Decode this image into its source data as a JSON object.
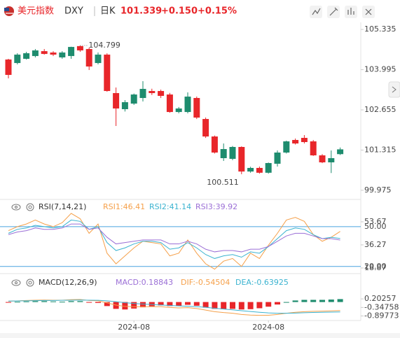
{
  "header": {
    "name": "美元指数",
    "symbol": "DXY",
    "period": "日K",
    "price": "101.339",
    "change": "+0.150",
    "pct": "+0.15%"
  },
  "chart_data": {
    "type": "candlestick",
    "ylim": [
      99.74,
      105.57
    ],
    "yticks": [
      105.335,
      103.995,
      102.655,
      101.315,
      99.975
    ],
    "colors": {
      "up": "#1e8c6e",
      "down": "#e8262a"
    },
    "high_label": 104.799,
    "low_label": 100.511,
    "xticks": [
      {
        "value": 14,
        "label": "2024-08"
      },
      {
        "value": 29,
        "label": "2024-08"
      }
    ],
    "candles": [
      [
        104.333,
        104.356,
        103.703,
        103.82
      ],
      [
        104.216,
        104.542,
        104.17,
        104.496
      ],
      [
        104.356,
        104.589,
        104.333,
        104.542
      ],
      [
        104.449,
        104.682,
        104.403,
        104.636
      ],
      [
        104.612,
        104.682,
        104.496,
        104.519
      ],
      [
        104.566,
        104.612,
        104.449,
        104.496
      ],
      [
        104.403,
        104.612,
        104.356,
        104.566
      ],
      [
        104.449,
        104.76,
        104.356,
        104.752
      ],
      [
        104.78,
        104.799,
        104.589,
        104.636
      ],
      [
        104.682,
        104.73,
        103.983,
        104.1
      ],
      [
        104.216,
        104.566,
        104.17,
        104.496
      ],
      [
        104.496,
        104.54,
        103.26,
        103.284
      ],
      [
        103.214,
        103.4,
        102.118,
        102.701
      ],
      [
        102.678,
        102.98,
        102.6,
        102.911
      ],
      [
        102.864,
        103.2,
        102.82,
        103.167
      ],
      [
        103.051,
        103.61,
        102.934,
        103.354
      ],
      [
        103.284,
        103.36,
        103.15,
        103.214
      ],
      [
        103.284,
        103.33,
        103.05,
        103.121
      ],
      [
        103.167,
        103.22,
        102.56,
        102.584
      ],
      [
        102.584,
        102.75,
        102.54,
        102.701
      ],
      [
        102.584,
        103.237,
        102.538,
        103.097
      ],
      [
        103.051,
        103.1,
        102.35,
        102.398
      ],
      [
        102.351,
        102.4,
        101.72,
        101.768
      ],
      [
        101.768,
        101.8,
        101.2,
        101.233
      ],
      [
        101.046,
        101.535,
        100.953,
        101.349
      ],
      [
        101.023,
        101.45,
        100.98,
        101.419
      ],
      [
        101.419,
        101.44,
        100.511,
        100.6
      ],
      [
        100.6,
        100.76,
        100.56,
        100.72
      ],
      [
        100.72,
        100.766,
        100.53,
        100.56
      ],
      [
        100.56,
        100.9,
        100.53,
        100.883
      ],
      [
        100.86,
        101.302,
        100.766,
        101.233
      ],
      [
        101.233,
        101.63,
        101.2,
        101.605
      ],
      [
        101.652,
        101.7,
        101.5,
        101.535
      ],
      [
        101.722,
        101.815,
        101.535,
        101.582
      ],
      [
        101.605,
        101.65,
        101.12,
        101.139
      ],
      [
        101.139,
        101.18,
        100.88,
        100.906
      ],
      [
        100.906,
        101.302,
        100.55,
        101.046
      ],
      [
        101.18,
        101.4,
        101.15,
        101.339
      ]
    ],
    "rsi": {
      "title": "RSI(7,14,21)",
      "ylim": [
        16.2,
        62.6
      ],
      "yticks": [
        53.67,
        36.27,
        18.87
      ],
      "levels": [
        {
          "value": 50,
          "label": "50.00"
        },
        {
          "value": 20,
          "label": "20.00"
        }
      ],
      "level_color": "#4aa3df",
      "series": [
        {
          "name": "RSI1:46.41",
          "color": "#f5a04a",
          "values": [
            47,
            50,
            52,
            55,
            52,
            50,
            53,
            60,
            56,
            45,
            52,
            30,
            22,
            28,
            34,
            39,
            38,
            37,
            28,
            30,
            40,
            30,
            22,
            18,
            24,
            26,
            20,
            30,
            26,
            36,
            45,
            55,
            57,
            54,
            44,
            39,
            42,
            46.41
          ]
        },
        {
          "name": "RSI2:41.14",
          "color": "#3bb3d0",
          "values": [
            45,
            48,
            49,
            51,
            50,
            49,
            50,
            55,
            54,
            48,
            50,
            38,
            32,
            34,
            37,
            39,
            39,
            38,
            33,
            34,
            38,
            34,
            29,
            26,
            28,
            29,
            27,
            31,
            30,
            35,
            41,
            47,
            49,
            48,
            44,
            41,
            42,
            41.14
          ]
        },
        {
          "name": "RSI3:39.92",
          "color": "#9b6fd6",
          "values": [
            44,
            46,
            47,
            49,
            48,
            48,
            49,
            52,
            52,
            48,
            49,
            42,
            37,
            38,
            39,
            40,
            40,
            40,
            37,
            37,
            39,
            37,
            33,
            31,
            32,
            32,
            31,
            33,
            33,
            35,
            39,
            43,
            45,
            45,
            43,
            41,
            41,
            39.92
          ]
        }
      ]
    },
    "macd": {
      "title": "MACD(12,26,9)",
      "ylim": [
        -1.1,
        1.65
      ],
      "yticks": [
        0.20257,
        -0.34758,
        -0.89773
      ],
      "histogram": {
        "name": "MACD:0.18843",
        "color": "#9b6fd6",
        "values": [
          -0.02,
          0.02,
          0.04,
          0.06,
          0.06,
          0.04,
          0.02,
          0.06,
          0.06,
          -0.04,
          -0.06,
          -0.26,
          -0.44,
          -0.48,
          -0.42,
          -0.34,
          -0.28,
          -0.22,
          -0.26,
          -0.26,
          -0.18,
          -0.24,
          -0.36,
          -0.44,
          -0.46,
          -0.44,
          -0.48,
          -0.46,
          -0.4,
          -0.3,
          -0.16,
          0,
          0.1,
          0.14,
          0.14,
          0.14,
          0.16,
          0.18843
        ]
      },
      "series": [
        {
          "name": "DIF:-0.54504",
          "color": "#f5a04a",
          "values": [
            0.05,
            0.08,
            0.1,
            0.12,
            0.13,
            0.12,
            0.12,
            0.15,
            0.16,
            0.1,
            0.08,
            -0.05,
            -0.2,
            -0.28,
            -0.3,
            -0.3,
            -0.3,
            -0.3,
            -0.35,
            -0.38,
            -0.36,
            -0.42,
            -0.52,
            -0.62,
            -0.68,
            -0.72,
            -0.8,
            -0.84,
            -0.86,
            -0.85,
            -0.8,
            -0.72,
            -0.66,
            -0.62,
            -0.6,
            -0.59,
            -0.57,
            -0.54504
          ]
        },
        {
          "name": "DEA:-0.63925",
          "color": "#3bb3d0",
          "values": [
            0.06,
            0.07,
            0.08,
            0.09,
            0.1,
            0.1,
            0.11,
            0.12,
            0.13,
            0.12,
            0.11,
            0.08,
            0.02,
            -0.04,
            -0.09,
            -0.13,
            -0.16,
            -0.19,
            -0.22,
            -0.25,
            -0.27,
            -0.3,
            -0.34,
            -0.4,
            -0.45,
            -0.5,
            -0.56,
            -0.61,
            -0.66,
            -0.7,
            -0.72,
            -0.72,
            -0.71,
            -0.69,
            -0.67,
            -0.66,
            -0.65,
            -0.63925
          ]
        }
      ]
    }
  }
}
